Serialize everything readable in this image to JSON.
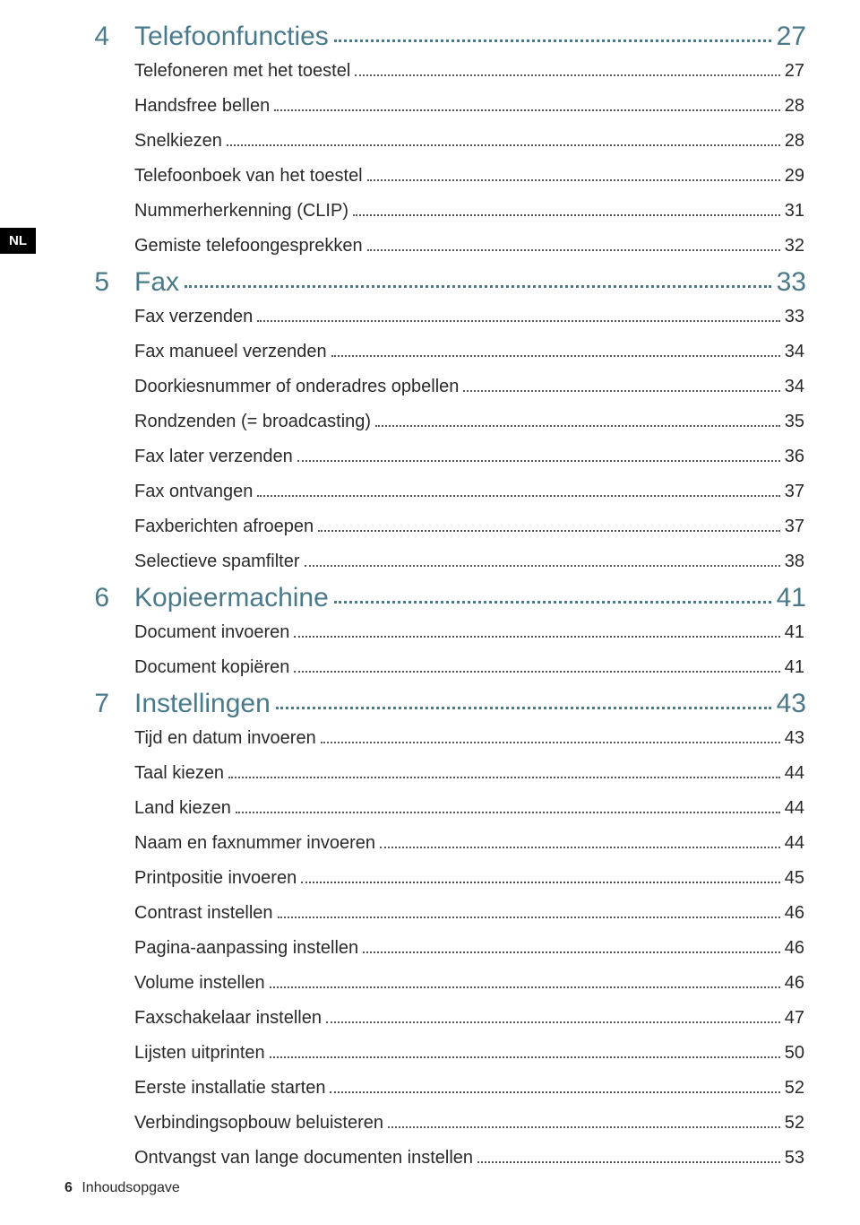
{
  "language_tab": "NL",
  "sections": [
    {
      "num": "4",
      "title": "Telefoonfuncties",
      "page": "27",
      "items": [
        {
          "title": "Telefoneren met het toestel",
          "page": "27"
        },
        {
          "title": "Handsfree bellen",
          "page": "28"
        },
        {
          "title": "Snelkiezen",
          "page": "28"
        },
        {
          "title": "Telefoonboek van het toestel",
          "page": "29"
        },
        {
          "title": "Nummerherkenning (CLIP)",
          "page": "31"
        },
        {
          "title": "Gemiste telefoongesprekken",
          "page": "32"
        }
      ]
    },
    {
      "num": "5",
      "title": "Fax",
      "page": "33",
      "items": [
        {
          "title": "Fax verzenden",
          "page": "33"
        },
        {
          "title": "Fax manueel verzenden",
          "page": "34"
        },
        {
          "title": "Doorkiesnummer of onderadres opbellen",
          "page": "34"
        },
        {
          "title": "Rondzenden (= broadcasting)",
          "page": "35"
        },
        {
          "title": "Fax later verzenden",
          "page": "36"
        },
        {
          "title": "Fax ontvangen",
          "page": "37"
        },
        {
          "title": "Faxberichten afroepen",
          "page": "37"
        },
        {
          "title": "Selectieve spamfilter",
          "page": "38"
        }
      ]
    },
    {
      "num": "6",
      "title": "Kopieermachine",
      "page": "41",
      "items": [
        {
          "title": "Document invoeren",
          "page": "41"
        },
        {
          "title": "Document kopiëren",
          "page": "41"
        }
      ]
    },
    {
      "num": "7",
      "title": "Instellingen",
      "page": "43",
      "items": [
        {
          "title": "Tijd en datum invoeren",
          "page": "43"
        },
        {
          "title": "Taal kiezen",
          "page": "44"
        },
        {
          "title": "Land kiezen",
          "page": "44"
        },
        {
          "title": "Naam en faxnummer invoeren",
          "page": "44"
        },
        {
          "title": "Printpositie invoeren",
          "page": "45"
        },
        {
          "title": "Contrast instellen",
          "page": "46"
        },
        {
          "title": "Pagina-aanpassing instellen",
          "page": "46"
        },
        {
          "title": "Volume instellen",
          "page": "46"
        },
        {
          "title": "Faxschakelaar instellen",
          "page": "47"
        },
        {
          "title": "Lijsten uitprinten",
          "page": "50"
        },
        {
          "title": "Eerste installatie starten",
          "page": "52"
        },
        {
          "title": "Verbindingsopbouw beluisteren",
          "page": "52"
        },
        {
          "title": "Ontvangst van lange documenten instellen",
          "page": "53"
        }
      ]
    }
  ],
  "footer": {
    "page_num": "6",
    "label": "Inhoudsopgave"
  }
}
